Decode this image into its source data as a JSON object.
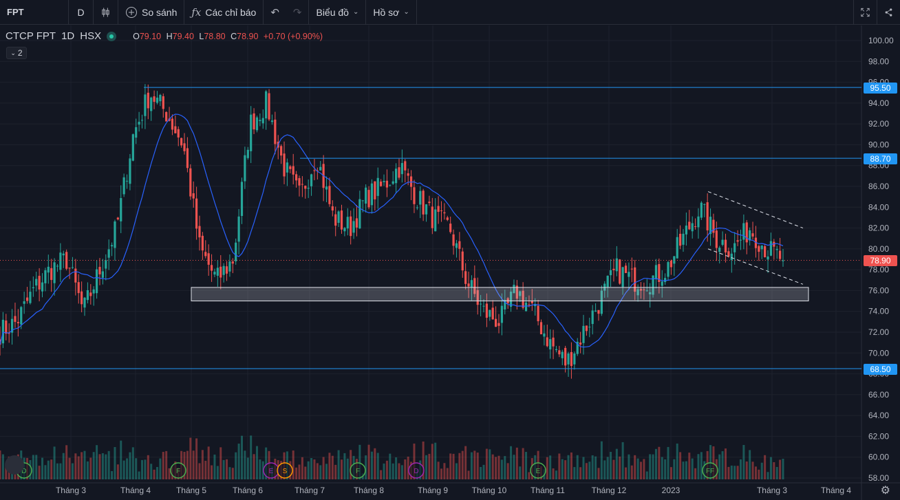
{
  "toolbar": {
    "symbol": "FPT",
    "interval": "D",
    "compare_label": "So sánh",
    "indicators_label": "Các chỉ báo",
    "chart_type_label": "Biểu đồ",
    "profile_label": "Hồ sơ",
    "icons": [
      "candles-icon",
      "plus-circle-icon",
      "fx-icon",
      "undo-icon",
      "redo-icon",
      "fullscreen-icon",
      "share-icon"
    ]
  },
  "legend": {
    "title": "CTCP FPT",
    "interval": "1D",
    "exchange": "HSX",
    "o_label": "O",
    "o_value": "79.10",
    "h_label": "H",
    "h_value": "79.40",
    "l_label": "L",
    "l_value": "78.80",
    "c_label": "C",
    "c_value": "78.90",
    "change": "+0.70 (+0.90%)",
    "indicator_count": "2"
  },
  "price_tags": {
    "p95": "95.50",
    "p88": "88.70",
    "last": "78.90",
    "p68": "68.50"
  },
  "colors": {
    "up": "#26a69a",
    "down": "#ef5350",
    "ma": "#2962ff",
    "hline": "#2196f3",
    "background": "#131722"
  },
  "chart_data": {
    "type": "candlestick",
    "y_axis_ticks": [
      "100.00",
      "98.00",
      "96.00",
      "94.00",
      "92.00",
      "90.00",
      "88.00",
      "86.00",
      "84.00",
      "82.00",
      "80.00",
      "78.00",
      "76.00",
      "74.00",
      "72.00",
      "70.00",
      "68.00",
      "66.00",
      "64.00",
      "62.00",
      "60.00",
      "58.00"
    ],
    "ylim": [
      58,
      100
    ],
    "x_axis_ticks": [
      "Tháng 3",
      "Tháng 4",
      "Tháng 5",
      "Tháng 6",
      "Tháng 7",
      "Tháng 8",
      "Tháng 9",
      "Tháng 10",
      "Tháng 11",
      "Tháng 12",
      "2023",
      "Tháng 3",
      "Tháng 4"
    ],
    "horizontal_lines": [
      95.5,
      88.7,
      68.5
    ],
    "last_price": 78.9,
    "support_zone": [
      75.0,
      76.3
    ],
    "channel_upper": [
      [
        85.5,
        82.0
      ]
    ],
    "channel_lower": [
      [
        80.0,
        76.6
      ]
    ],
    "event_markers": [
      "D",
      "F",
      "S",
      "F",
      "E",
      "F",
      "FF"
    ],
    "anchor_closes": [
      72,
      73,
      76,
      78,
      79,
      74,
      78,
      82,
      91,
      95,
      93,
      90,
      80,
      77,
      79,
      92,
      94,
      88,
      85,
      89,
      83,
      82,
      85,
      86,
      88,
      85,
      83,
      82,
      77,
      74,
      73,
      76,
      74,
      71,
      69,
      72,
      75,
      78,
      77,
      77,
      78,
      81,
      84,
      81,
      80,
      82,
      80,
      79
    ]
  }
}
